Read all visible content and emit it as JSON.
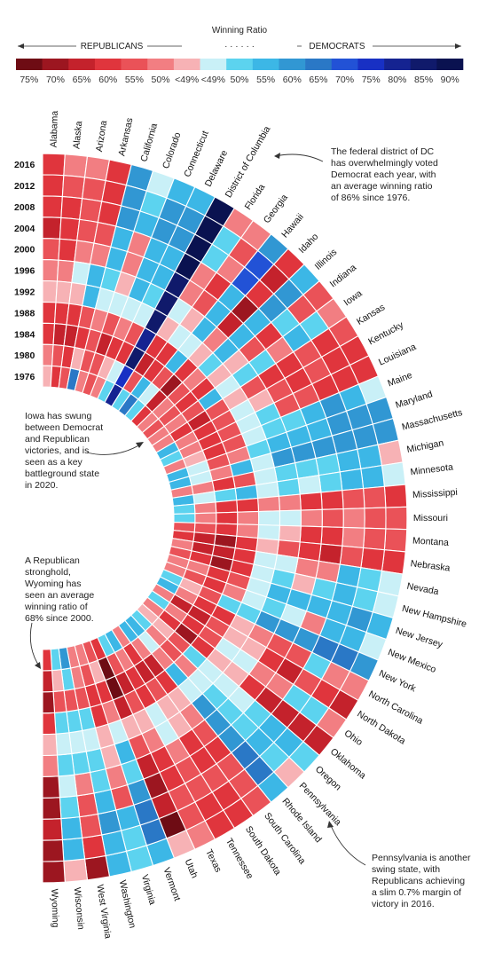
{
  "legend": {
    "title": "Winning Ratio",
    "left_label": "REPUBLICANS",
    "right_label": "DEMOCRATS",
    "dots": "· · ·   · · ·",
    "ticks": [
      "75%",
      "70%",
      "65%",
      "60%",
      "55%",
      "50%",
      "<49%",
      "<49%",
      "50%",
      "55%",
      "60%",
      "65%",
      "70%",
      "75%",
      "80%",
      "85%",
      "90%"
    ],
    "colors": [
      "#6e0c14",
      "#9c1620",
      "#c4222c",
      "#e0353d",
      "#ea5258",
      "#f27e82",
      "#f7b2b5",
      "#c9f0f7",
      "#5cd3ef",
      "#3cb7e6",
      "#3197d3",
      "#2a78c6",
      "#2252d6",
      "#1830c4",
      "#152391",
      "#101a6b",
      "#0a1250"
    ]
  },
  "annotations": {
    "dc": [
      "The federal district of DC",
      "has overwhelmingly voted",
      "Democrat each year, with",
      "an average winning ratio",
      "of 86% since 1976."
    ],
    "iowa": [
      "Iowa has swung",
      "between Democrat",
      "and Republican",
      "victories, and is",
      "seen as a key",
      "battleground state",
      "in 2020."
    ],
    "wyoming": [
      "A Republican",
      "stronghold,",
      "Wyoming has",
      "seen an average",
      "winning ratio of",
      "68% since 2000."
    ],
    "pennsylvania": [
      "Pennsylvania is another",
      "swing state, with",
      "Republicans achieving",
      "a slim 0.7% margin of",
      "victory in 2016."
    ]
  },
  "chart_data": {
    "type": "heatmap",
    "title": "Winning Ratio",
    "years": [
      "2016",
      "2012",
      "2008",
      "2004",
      "2000",
      "1996",
      "1992",
      "1988",
      "1984",
      "1980",
      "1976"
    ],
    "states": [
      "Alabama",
      "Alaska",
      "Arizona",
      "Arkansas",
      "California",
      "Colorado",
      "Connecticut",
      "Delaware",
      "District of Columbia",
      "Florida",
      "Georgia",
      "Hawaii",
      "Idaho",
      "Illinois",
      "Indiana",
      "Iowa",
      "Kansas",
      "Kentucky",
      "Louisiana",
      "Maine",
      "Maryland",
      "Massachusetts",
      "Michigan",
      "Minnesota",
      "Mississippi",
      "Missouri",
      "Montana",
      "Nebraska",
      "Nevada",
      "New Hampshire",
      "New Jersey",
      "New Mexico",
      "New York",
      "North Carolina",
      "North Dakota",
      "Ohio",
      "Oklahoma",
      "Oregon",
      "Pennsylvania",
      "Rhode Island",
      "South Carolina",
      "South Dakota",
      "Tennessee",
      "Texas",
      "Utah",
      "Vermont",
      "Virginia",
      "Washington",
      "West Virginia",
      "Wisconsin",
      "Wyoming"
    ],
    "value_encoding": "signed winning ratio %: negative = Republican, positive = Democrat",
    "values": {
      "Alabama": [
        -62,
        -61,
        -60,
        -63,
        -56,
        -50,
        -48,
        -59,
        -61,
        -49,
        -43
      ],
      "Alaska": [
        -51,
        -55,
        -60,
        -61,
        -59,
        -51,
        -40,
        -60,
        -67,
        -54,
        -58
      ],
      "Arizona": [
        -49,
        -54,
        -54,
        -55,
        -51,
        47,
        -38,
        -60,
        -66,
        -61,
        -56
      ],
      "Arkansas": [
        -61,
        -61,
        -59,
        -54,
        -51,
        54,
        53,
        -56,
        -60,
        -48,
        65
      ],
      "California": [
        62,
        60,
        61,
        54,
        53,
        51,
        46,
        -51,
        -57,
        -53,
        -50
      ],
      "Colorado": [
        48,
        51,
        54,
        -52,
        -51,
        -46,
        40,
        -53,
        -63,
        -55,
        -54
      ],
      "Connecticut": [
        55,
        58,
        61,
        54,
        56,
        53,
        42,
        -52,
        -61,
        -48,
        -52
      ],
      "Delaware": [
        53,
        59,
        62,
        53,
        55,
        52,
        44,
        -56,
        -60,
        45,
        52
      ],
      "District of Columbia": [
        91,
        91,
        92,
        89,
        85,
        85,
        85,
        82,
        85,
        75,
        82
      ],
      "Florida": [
        -49,
        50,
        51,
        -52,
        -49,
        48,
        -41,
        -61,
        -65,
        -56,
        52
      ],
      "Georgia": [
        -51,
        -53,
        -52,
        -58,
        -55,
        -47,
        44,
        -60,
        -60,
        56,
        67
      ],
      "Hawaii": [
        62,
        71,
        72,
        54,
        56,
        57,
        48,
        54,
        -55,
        45,
        51
      ],
      "Idaho": [
        -59,
        -65,
        -61,
        -68,
        -67,
        -52,
        -42,
        -62,
        -72,
        -66,
        -59
      ],
      "Illinois": [
        56,
        58,
        62,
        55,
        55,
        54,
        49,
        -51,
        -56,
        -50,
        -50
      ],
      "Indiana": [
        -57,
        -54,
        50,
        -60,
        -57,
        -47,
        -43,
        -60,
        -62,
        -56,
        -53
      ],
      "Iowa": [
        -51,
        52,
        54,
        -50,
        49,
        50,
        43,
        55,
        -53,
        -51,
        -50
      ],
      "Kansas": [
        -57,
        -60,
        -57,
        -62,
        -58,
        -54,
        -39,
        -56,
        -66,
        -58,
        -52
      ],
      "Kentucky": [
        -62,
        -61,
        -57,
        -60,
        -57,
        -45,
        45,
        -56,
        -60,
        -49,
        53
      ],
      "Louisiana": [
        -58,
        -58,
        -59,
        -57,
        -53,
        52,
        46,
        -54,
        -61,
        -51,
        52
      ],
      "Maine": [
        48,
        56,
        58,
        54,
        49,
        52,
        39,
        -55,
        -61,
        -46,
        -49
      ],
      "Maryland": [
        60,
        62,
        62,
        56,
        57,
        54,
        50,
        -51,
        -53,
        47,
        53
      ],
      "Massachusetts": [
        60,
        61,
        62,
        62,
        60,
        62,
        48,
        53,
        -51,
        42,
        56
      ],
      "Michigan": [
        -48,
        54,
        57,
        51,
        51,
        52,
        44,
        -54,
        -59,
        -49,
        -52
      ],
      "Minnesota": [
        46,
        53,
        54,
        51,
        48,
        51,
        43,
        53,
        50,
        47,
        55
      ],
      "Mississippi": [
        -58,
        -55,
        -56,
        -59,
        -58,
        -49,
        -50,
        -60,
        -62,
        -49,
        50
      ],
      "Missouri": [
        -57,
        -54,
        -49,
        -53,
        -50,
        48,
        44,
        -52,
        -60,
        -51,
        51
      ],
      "Montana": [
        -56,
        -55,
        -50,
        -59,
        -58,
        -44,
        38,
        -52,
        -60,
        -57,
        -53
      ],
      "Nebraska": [
        -59,
        -60,
        -57,
        -66,
        -62,
        -54,
        -47,
        -60,
        -71,
        -66,
        -59
      ],
      "Nevada": [
        48,
        52,
        55,
        -51,
        -49,
        44,
        37,
        -59,
        -66,
        -63,
        -50
      ],
      "New Hampshire": [
        47,
        52,
        54,
        50,
        -48,
        49,
        39,
        -62,
        -69,
        -58,
        -55
      ],
      "New Jersey": [
        55,
        58,
        57,
        53,
        56,
        54,
        43,
        -56,
        -60,
        -52,
        -50
      ],
      "New Mexico": [
        48,
        53,
        57,
        -50,
        48,
        49,
        46,
        -52,
        -60,
        -55,
        -51
      ],
      "New York": [
        59,
        63,
        63,
        58,
        60,
        59,
        50,
        52,
        -54,
        -47,
        52
      ],
      "North Carolina": [
        -50,
        -50,
        50,
        -56,
        -56,
        -49,
        -43,
        -58,
        -62,
        -49,
        55
      ],
      "North Dakota": [
        -63,
        -58,
        -53,
        -63,
        -61,
        -47,
        -44,
        -56,
        -65,
        -64,
        -52
      ],
      "Ohio": [
        -52,
        51,
        52,
        -51,
        -50,
        47,
        40,
        -55,
        -59,
        -52,
        49
      ],
      "Oklahoma": [
        -65,
        -67,
        -66,
        -66,
        -60,
        -48,
        -43,
        -58,
        -69,
        -60,
        -50
      ],
      "Oregon": [
        50,
        54,
        57,
        52,
        47,
        47,
        42,
        51,
        -56,
        -48,
        -48
      ],
      "Pennsylvania": [
        -48,
        52,
        55,
        51,
        51,
        49,
        45,
        -51,
        -53,
        -50,
        50
      ],
      "Rhode Island": [
        54,
        63,
        63,
        60,
        61,
        60,
        47,
        56,
        -52,
        48,
        55
      ],
      "South Carolina": [
        -55,
        -55,
        -54,
        -58,
        -57,
        -50,
        -48,
        -62,
        -64,
        -49,
        56
      ],
      "South Dakota": [
        -62,
        -58,
        -53,
        -60,
        -60,
        -46,
        -41,
        -53,
        -63,
        -61,
        -50
      ],
      "Tennessee": [
        -61,
        -59,
        -57,
        -57,
        -51,
        48,
        47,
        -58,
        -58,
        -49,
        56
      ],
      "Texas": [
        -52,
        -57,
        -55,
        -61,
        -59,
        -49,
        -40,
        -56,
        -64,
        -55,
        51
      ],
      "Utah": [
        -46,
        -73,
        -63,
        -72,
        -67,
        -54,
        -43,
        -66,
        -75,
        -73,
        -62
      ],
      "Vermont": [
        57,
        67,
        67,
        59,
        51,
        53,
        46,
        -51,
        -58,
        -44,
        -54
      ],
      "Virginia": [
        50,
        51,
        53,
        -54,
        -52,
        -47,
        -45,
        -60,
        -62,
        -53,
        -50
      ],
      "Washington": [
        53,
        56,
        58,
        53,
        50,
        50,
        43,
        50,
        -56,
        -50,
        -50
      ],
      "West Virginia": [
        -69,
        -62,
        -56,
        -56,
        -52,
        52,
        48,
        52,
        -55,
        50,
        58
      ],
      "Wisconsin": [
        -47,
        53,
        56,
        50,
        48,
        49,
        41,
        51,
        -54,
        -48,
        49
      ],
      "Wyoming": [
        -68,
        -69,
        -65,
        -69,
        -69,
        -50,
        -40,
        -61,
        -71,
        -63,
        -60
      ]
    }
  }
}
